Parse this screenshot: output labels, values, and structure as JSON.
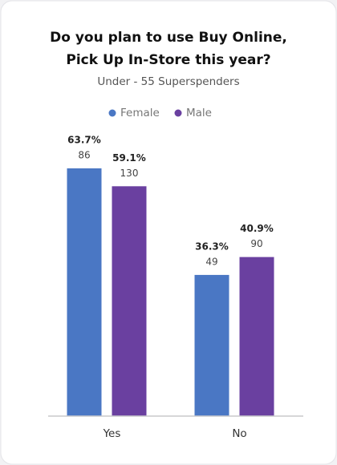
{
  "chart_data": {
    "type": "bar",
    "title": [
      "Do you plan to use Buy Online,",
      "Pick Up In-Store this year?"
    ],
    "subtitle": "Under - 55 Superspenders",
    "categories": [
      "Yes",
      "No"
    ],
    "legend": "top",
    "series": [
      {
        "name": "Female",
        "color": "#4a77c4",
        "values": [
          63.7,
          36.3
        ],
        "value_labels": [
          "63.7%",
          "36.3%"
        ],
        "counts": [
          86,
          49
        ]
      },
      {
        "name": "Male",
        "color": "#6a40a0",
        "values": [
          59.1,
          40.9
        ],
        "value_labels": [
          "59.1%",
          "40.9%"
        ],
        "counts": [
          130,
          90
        ]
      }
    ]
  }
}
